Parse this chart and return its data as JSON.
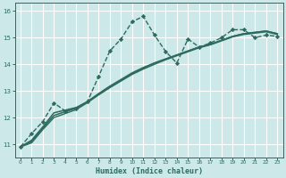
{
  "bg_color": "#cce8e8",
  "grid_color": "#aacccc",
  "line_color": "#2d6b5e",
  "xlabel": "Humidex (Indice chaleur)",
  "xlim": [
    -0.5,
    23.5
  ],
  "ylim": [
    10.5,
    16.3
  ],
  "yticks": [
    11,
    12,
    13,
    14,
    15,
    16
  ],
  "xticks": [
    0,
    1,
    2,
    3,
    4,
    5,
    6,
    7,
    8,
    9,
    10,
    11,
    12,
    13,
    14,
    15,
    16,
    17,
    18,
    19,
    20,
    21,
    22,
    23
  ],
  "series": [
    {
      "x": [
        0,
        1,
        2,
        3,
        4,
        5,
        6,
        7,
        8,
        9,
        10,
        11,
        12,
        13,
        14,
        15,
        16,
        17,
        18,
        19,
        20,
        21,
        22,
        23
      ],
      "y": [
        10.9,
        11.4,
        11.85,
        12.55,
        12.25,
        12.35,
        12.6,
        13.55,
        14.5,
        14.95,
        15.6,
        15.8,
        15.1,
        14.48,
        14.05,
        14.95,
        14.65,
        14.8,
        15.0,
        15.3,
        15.3,
        15.0,
        15.1,
        15.05
      ],
      "marker": "D",
      "markersize": 2.2,
      "linewidth": 1.0,
      "linestyle": "--"
    },
    {
      "x": [
        0,
        1,
        2,
        3,
        4,
        5,
        6,
        7,
        8,
        9,
        10,
        11,
        12,
        13,
        14,
        15,
        16,
        17,
        18,
        19,
        20,
        21,
        22,
        23
      ],
      "y": [
        10.9,
        11.15,
        11.65,
        12.18,
        12.28,
        12.38,
        12.6,
        12.88,
        13.15,
        13.4,
        13.65,
        13.85,
        14.05,
        14.2,
        14.35,
        14.5,
        14.65,
        14.75,
        14.9,
        15.05,
        15.15,
        15.2,
        15.25,
        15.15
      ],
      "marker": null,
      "linewidth": 1.1,
      "linestyle": "-"
    },
    {
      "x": [
        0,
        1,
        2,
        3,
        4,
        5,
        6,
        7,
        8,
        9,
        10,
        11,
        12,
        13,
        14,
        15,
        16,
        17,
        18,
        19,
        20,
        21,
        22,
        23
      ],
      "y": [
        10.9,
        11.1,
        11.6,
        12.08,
        12.22,
        12.35,
        12.6,
        12.9,
        13.18,
        13.43,
        13.68,
        13.88,
        14.05,
        14.2,
        14.35,
        14.5,
        14.65,
        14.75,
        14.9,
        15.05,
        15.15,
        15.2,
        15.25,
        15.15
      ],
      "marker": null,
      "linewidth": 1.1,
      "linestyle": "-"
    },
    {
      "x": [
        0,
        1,
        2,
        3,
        4,
        5,
        6,
        7,
        8,
        9,
        10,
        11,
        12,
        13,
        14,
        15,
        16,
        17,
        18,
        19,
        20,
        21,
        22,
        23
      ],
      "y": [
        10.9,
        11.05,
        11.55,
        12.0,
        12.15,
        12.3,
        12.56,
        12.85,
        13.12,
        13.37,
        13.62,
        13.82,
        14.0,
        14.17,
        14.32,
        14.47,
        14.62,
        14.73,
        14.88,
        15.03,
        15.12,
        15.17,
        15.22,
        15.12
      ],
      "marker": null,
      "linewidth": 1.0,
      "linestyle": "-"
    }
  ]
}
